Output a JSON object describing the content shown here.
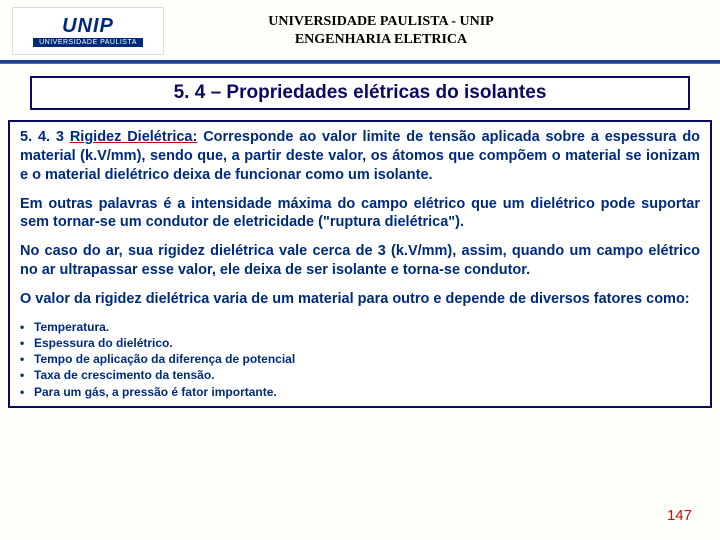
{
  "header": {
    "logo_top": "UNIP",
    "logo_bottom": "UNIVERSIDADE PAULISTA",
    "line1": "UNIVERSIDADE PAULISTA - UNIP",
    "line2": "ENGENHARIA  ELETRICA"
  },
  "title": "5. 4 – Propriedades elétricas do isolantes",
  "section": {
    "num": "5. 4. 3",
    "term": "Rigidez Dielétrica:",
    "def": " Corresponde ao valor limite de tensão aplicada sobre a espessura do material (k.V/mm), sendo que, a partir deste valor, os átomos que compõem o material se ionizam e o material dielétrico deixa de funcionar como um isolante."
  },
  "para2": " Em outras palavras é a intensidade máxima do campo elétrico que um dielétrico pode suportar sem tornar-se um condutor de eletricidade (\"ruptura dielétrica\").",
  "para3": "No caso do ar, sua rigidez dielétrica vale cerca de 3 (k.V/mm), assim, quando um campo elétrico no ar ultrapassar esse valor, ele deixa de ser isolante e torna-se condutor.",
  "para4": "O valor da rigidez dielétrica varia de um material para outro e depende de diversos fatores como:",
  "bullets": [
    "Temperatura.",
    "Espessura do dielétrico.",
    "Tempo de aplicação da diferença de potencial",
    "Taxa de crescimento da tensão.",
    "Para um gás, a pressão é fator importante."
  ],
  "page_number": "147",
  "colors": {
    "text_main": "#002b7a",
    "border": "#0a0a60",
    "rule": "#1b3f8b",
    "accent_red": "#cc0000",
    "page_num": "#c01010",
    "bg": "#fffffa"
  }
}
